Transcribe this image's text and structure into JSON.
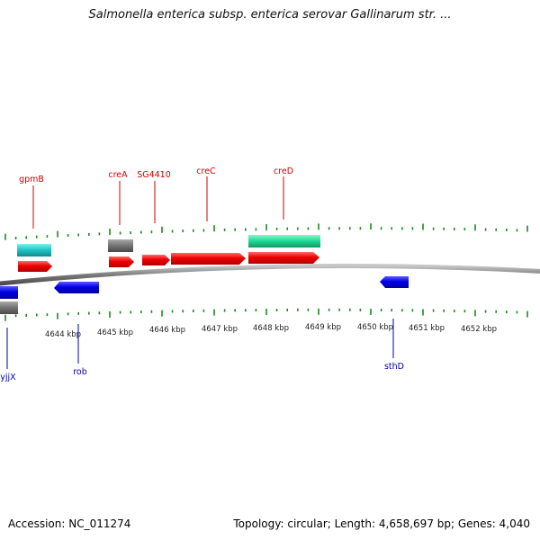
{
  "title": "Salmonella enterica subsp. enterica serovar Gallinarum str. ...",
  "accession": "Accession: NC_011274",
  "stats": "Topology: circular; Length: 4,658,697 bp; Genes: 4,040",
  "colors": {
    "backbone": "#8c8c8c",
    "tick": "#1a8a1a",
    "forward_gene": "#ff0000",
    "reverse_gene": "#0000ee",
    "forward_label": "#cc0000",
    "reverse_label": "#0000aa",
    "rna_grey": "#777777",
    "cyan_feature": "#22c7c7",
    "green_feature": "#22dd99"
  },
  "scale_labels": [
    "4644 kbp",
    "4645 kbp",
    "4646 kbp",
    "4647 kbp",
    "4648 kbp",
    "4649 kbp",
    "4650 kbp",
    "4651 kbp",
    "4652 kbp"
  ],
  "forward_gene_labels": [
    "gpmB",
    "creA",
    "SG4410",
    "creC",
    "creD"
  ],
  "reverse_gene_labels": [
    "yjjX",
    "rob",
    "sthD"
  ]
}
